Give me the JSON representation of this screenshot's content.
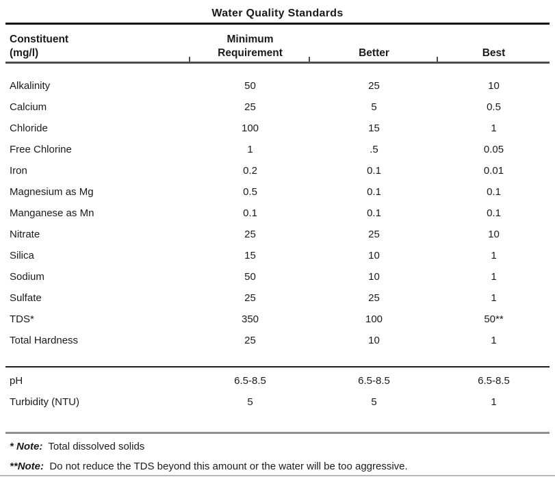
{
  "page": {
    "title": "Water Quality Standards"
  },
  "table": {
    "header": {
      "constituent_line1": "Constituent",
      "constituent_line2": "(mg/l)",
      "minimum_line1": "Minimum",
      "minimum_line2": "Requirement",
      "better": "Better",
      "best": "Best"
    },
    "rows": [
      {
        "constituent": "Alkalinity",
        "minimum": "50",
        "better": "25",
        "best": "10"
      },
      {
        "constituent": "Calcium",
        "minimum": "25",
        "better": "5",
        "best": "0.5"
      },
      {
        "constituent": "Chloride",
        "minimum": "100",
        "better": "15",
        "best": "1"
      },
      {
        "constituent": "Free Chlorine",
        "minimum": "1",
        "better": ".5",
        "best": "0.05"
      },
      {
        "constituent": "Iron",
        "minimum": "0.2",
        "better": "0.1",
        "best": "0.01"
      },
      {
        "constituent": "Magnesium as Mg",
        "minimum": "0.5",
        "better": "0.1",
        "best": "0.1"
      },
      {
        "constituent": "Manganese as Mn",
        "minimum": "0.1",
        "better": "0.1",
        "best": "0.1"
      },
      {
        "constituent": "Nitrate",
        "minimum": "25",
        "better": "25",
        "best": "10"
      },
      {
        "constituent": "Silica",
        "minimum": "15",
        "better": "10",
        "best": "1"
      },
      {
        "constituent": "Sodium",
        "minimum": "50",
        "better": "10",
        "best": "1"
      },
      {
        "constituent": "Sulfate",
        "minimum": "25",
        "better": "25",
        "best": "1"
      },
      {
        "constituent": "TDS*",
        "minimum": "350",
        "better": "100",
        "best": "50**"
      },
      {
        "constituent": "Total Hardness",
        "minimum": "25",
        "better": "10",
        "best": "1"
      }
    ],
    "secondary_rows": [
      {
        "constituent": "pH",
        "minimum": "6.5-8.5",
        "better": "6.5-8.5",
        "best": "6.5-8.5"
      },
      {
        "constituent": "Turbidity (NTU)",
        "minimum": "5",
        "better": "5",
        "best": "1"
      }
    ]
  },
  "notes": [
    {
      "marker": "* ",
      "label": "Note:",
      "text": "  Total dissolved solids"
    },
    {
      "marker": "**",
      "label": "Note:",
      "text": "  Do not reduce the TDS beyond this amount or the water will be too aggressive."
    }
  ],
  "colors": {
    "text": "#1a1a1a",
    "title_rule": "#0c0c0c",
    "header_rule": "#4d4d4d",
    "section_rule": "#1c1c1c",
    "notes_rule": "#8f8f8f",
    "bottom_edge": "#b8b8b8"
  }
}
